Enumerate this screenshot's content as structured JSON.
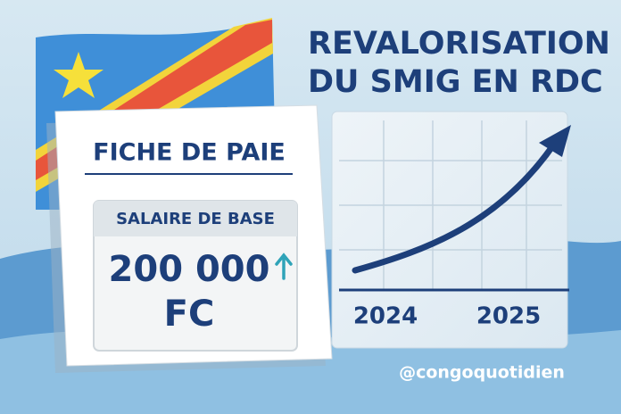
{
  "title": {
    "lines": [
      "REVALORISATION",
      "DU SMIG EN RDC"
    ]
  },
  "payslip": {
    "title": "FICHE DE PAIE",
    "label": "SALAIRE DE BASE",
    "amount": "200 000",
    "currency": "FC"
  },
  "chart": {
    "years": [
      "2024",
      "2025"
    ]
  },
  "footer": {
    "handle": "@congoquotidien"
  }
}
